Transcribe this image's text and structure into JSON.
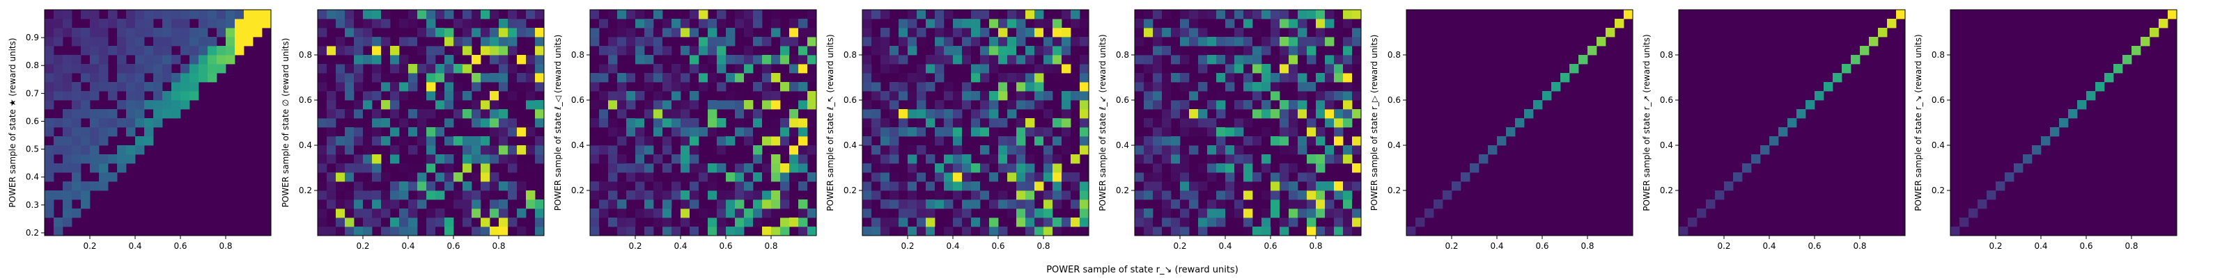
{
  "figure": {
    "shared_xlabel": "POWER sample of state r_↘ (reward units)"
  },
  "chart_data": [
    {
      "type": "heatmap",
      "id": "panel-1",
      "title": "",
      "ylabel": "POWER sample of state ★ (reward units)",
      "xlim": [
        0.0,
        1.0
      ],
      "ylim": [
        0.19,
        1.0
      ],
      "xticks": [
        0.2,
        0.4,
        0.6,
        0.8
      ],
      "xtick_labels": [
        "0.2",
        "0.4",
        "0.6",
        "0.8"
      ],
      "yticks": [
        0.2,
        0.3,
        0.4,
        0.5,
        0.6,
        0.7,
        0.8,
        0.9
      ],
      "ytick_labels": [
        "0.2",
        "0.3",
        "0.4",
        "0.5",
        "0.6",
        "0.7",
        "0.8",
        "0.9"
      ],
      "bins": 25,
      "pattern": "wedge",
      "colormap": "viridis"
    },
    {
      "type": "heatmap",
      "id": "panel-2",
      "title": "",
      "ylabel": "POWER sample of state ∅ (reward units)",
      "xlim": [
        0.0,
        1.0
      ],
      "ylim": [
        0.0,
        1.0
      ],
      "xticks": [
        0.2,
        0.4,
        0.6,
        0.8
      ],
      "xtick_labels": [
        "0.2",
        "0.4",
        "0.6",
        "0.8"
      ],
      "yticks": [
        0.2,
        0.4,
        0.6,
        0.8
      ],
      "ytick_labels": [
        "0.2",
        "0.4",
        "0.6",
        "0.8"
      ],
      "bins": 25,
      "pattern": "scatter",
      "colormap": "viridis"
    },
    {
      "type": "heatmap",
      "id": "panel-3",
      "title": "",
      "ylabel": "POWER sample of state ℓ_◁ (reward units)",
      "xlim": [
        0.0,
        1.0
      ],
      "ylim": [
        0.0,
        1.0
      ],
      "xticks": [
        0.2,
        0.4,
        0.6,
        0.8
      ],
      "xtick_labels": [
        "0.2",
        "0.4",
        "0.6",
        "0.8"
      ],
      "yticks": [
        0.2,
        0.4,
        0.6,
        0.8
      ],
      "ytick_labels": [
        "0.2",
        "0.4",
        "0.6",
        "0.8"
      ],
      "bins": 25,
      "pattern": "scatter",
      "colormap": "viridis"
    },
    {
      "type": "heatmap",
      "id": "panel-4",
      "title": "",
      "ylabel": "POWER sample of state ℓ_↖ (reward units)",
      "xlim": [
        0.0,
        1.0
      ],
      "ylim": [
        0.0,
        1.0
      ],
      "xticks": [
        0.2,
        0.4,
        0.6,
        0.8
      ],
      "xtick_labels": [
        "0.2",
        "0.4",
        "0.6",
        "0.8"
      ],
      "yticks": [
        0.2,
        0.4,
        0.6,
        0.8
      ],
      "ytick_labels": [
        "0.2",
        "0.4",
        "0.6",
        "0.8"
      ],
      "bins": 25,
      "pattern": "scatter",
      "colormap": "viridis"
    },
    {
      "type": "heatmap",
      "id": "panel-5",
      "title": "",
      "ylabel": "POWER sample of state ℓ_↙ (reward units)",
      "xlim": [
        0.0,
        1.0
      ],
      "ylim": [
        0.0,
        1.0
      ],
      "xticks": [
        0.2,
        0.4,
        0.6,
        0.8
      ],
      "xtick_labels": [
        "0.2",
        "0.4",
        "0.6",
        "0.8"
      ],
      "yticks": [
        0.2,
        0.4,
        0.6,
        0.8
      ],
      "ytick_labels": [
        "0.2",
        "0.4",
        "0.6",
        "0.8"
      ],
      "bins": 25,
      "pattern": "scatter",
      "colormap": "viridis"
    },
    {
      "type": "heatmap",
      "id": "panel-6",
      "title": "",
      "ylabel": "POWER sample of state r_▷ (reward units)",
      "xlim": [
        0.0,
        1.0
      ],
      "ylim": [
        0.0,
        1.0
      ],
      "xticks": [
        0.2,
        0.4,
        0.6,
        0.8
      ],
      "xtick_labels": [
        "0.2",
        "0.4",
        "0.6",
        "0.8"
      ],
      "yticks": [
        0.2,
        0.4,
        0.6,
        0.8
      ],
      "ytick_labels": [
        "0.2",
        "0.4",
        "0.6",
        "0.8"
      ],
      "bins": 25,
      "pattern": "diagonal",
      "colormap": "viridis"
    },
    {
      "type": "heatmap",
      "id": "panel-7",
      "title": "",
      "ylabel": "POWER sample of state r_↗ (reward units)",
      "xlim": [
        0.0,
        1.0
      ],
      "ylim": [
        0.0,
        1.0
      ],
      "xticks": [
        0.2,
        0.4,
        0.6,
        0.8
      ],
      "xtick_labels": [
        "0.2",
        "0.4",
        "0.6",
        "0.8"
      ],
      "yticks": [
        0.2,
        0.4,
        0.6,
        0.8
      ],
      "ytick_labels": [
        "0.2",
        "0.4",
        "0.6",
        "0.8"
      ],
      "bins": 25,
      "pattern": "diagonal",
      "colormap": "viridis"
    },
    {
      "type": "heatmap",
      "id": "panel-8",
      "title": "",
      "ylabel": "POWER sample of state r_↘ (reward units)",
      "xlim": [
        0.0,
        1.0
      ],
      "ylim": [
        0.0,
        1.0
      ],
      "xticks": [
        0.2,
        0.4,
        0.6,
        0.8
      ],
      "xtick_labels": [
        "0.2",
        "0.4",
        "0.6",
        "0.8"
      ],
      "yticks": [
        0.2,
        0.4,
        0.6,
        0.8
      ],
      "ytick_labels": [
        "0.2",
        "0.4",
        "0.6",
        "0.8"
      ],
      "bins": 25,
      "pattern": "diagonal",
      "colormap": "viridis"
    }
  ]
}
